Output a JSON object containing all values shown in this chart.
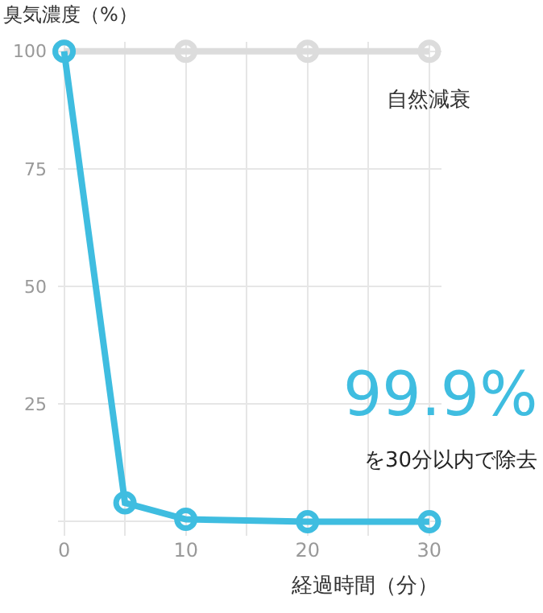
{
  "chart_data": {
    "type": "line",
    "ylabel": "臭気濃度（%）",
    "xlabel": "経過時間（分）",
    "x": [
      0,
      10,
      20,
      30
    ],
    "series": [
      {
        "name": "自然減衰",
        "color": "#dcdcdc",
        "values": [
          100,
          100,
          100,
          100
        ]
      },
      {
        "color": "#3fbde0",
        "x": [
          0,
          5,
          10,
          20,
          30
        ],
        "values": [
          100,
          4,
          0.5,
          0,
          0
        ]
      }
    ],
    "xlim": [
      -0.5,
      31
    ],
    "xticks": [
      0,
      {
        "value": 5,
        "label": null
      },
      10,
      {
        "value": 15,
        "label": null
      },
      20,
      {
        "value": 25,
        "label": null
      },
      30
    ],
    "ylim": [
      -3,
      102
    ],
    "yticks": [
      {
        "value": 0,
        "label": null
      },
      25,
      50,
      75,
      100
    ],
    "grid": true,
    "legend": false,
    "marker": "circle",
    "line_style": "solid",
    "annotations": [
      "99.9%",
      "を30分以内で除去"
    ]
  }
}
